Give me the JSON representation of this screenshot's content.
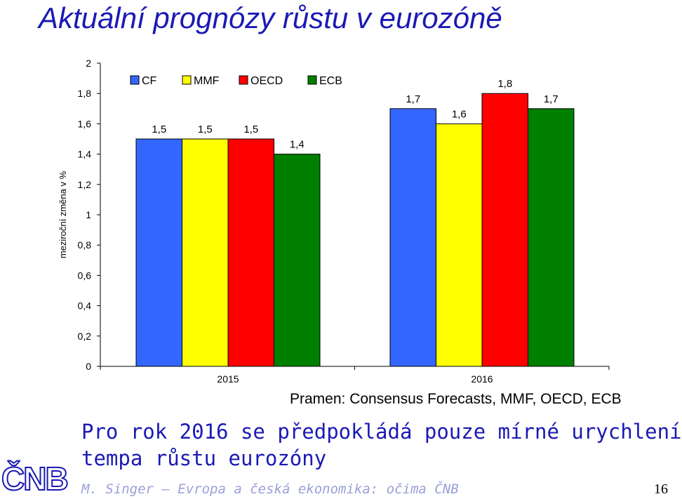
{
  "slide": {
    "title": "Aktuální prognózy růstu v eurozóně",
    "source": "Pramen: Consensus Forecasts, MMF, OECD, ECB",
    "message_line1": "Pro rok 2016 se předpokládá pouze mírné urychlení",
    "message_line2": "tempa růstu eurozóny",
    "logo": "ČNB",
    "footer": "M. Singer – Evropa a česká ekonomika: očima ČNB",
    "page_number": "16"
  },
  "chart_data": {
    "type": "bar",
    "categories": [
      "2015",
      "2016"
    ],
    "series": [
      {
        "name": "CF",
        "values": [
          1.5,
          1.7
        ],
        "labels": [
          "1,5",
          "1,7"
        ],
        "color": "#3366ff"
      },
      {
        "name": "MMF",
        "values": [
          1.5,
          1.6
        ],
        "labels": [
          "1,5",
          "1,6"
        ],
        "color": "#ffff00"
      },
      {
        "name": "OECD",
        "values": [
          1.5,
          1.8
        ],
        "labels": [
          "1,5",
          "1,8"
        ],
        "color": "#ff0000"
      },
      {
        "name": "ECB",
        "values": [
          1.4,
          1.7
        ],
        "labels": [
          "1,4",
          "1,7"
        ],
        "color": "#007f00"
      }
    ],
    "ylabel": "meziroční změna v %",
    "ylim": [
      0,
      2
    ],
    "yticks": [
      0,
      0.2,
      0.4,
      0.6,
      0.8,
      1,
      1.2,
      1.4,
      1.6,
      1.8,
      2
    ],
    "ytick_labels": [
      "0",
      "0,2",
      "0,4",
      "0,6",
      "0,8",
      "1",
      "1,2",
      "1,4",
      "1,6",
      "1,8",
      "2"
    ],
    "legend": "top-left",
    "grid": false
  }
}
